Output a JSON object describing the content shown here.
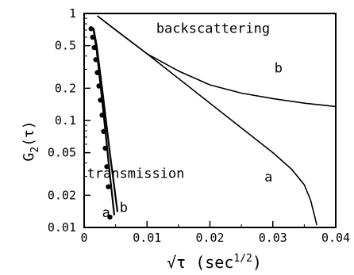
{
  "chart_data": {
    "type": "line",
    "xlabel": "√τ  (sec",
    "xlabel_sup": "1/2",
    "xlabel_close": ")",
    "ylabel": "G",
    "ylabel_sub": "2",
    "ylabel_arg": "(τ)",
    "xlim": [
      0,
      0.04
    ],
    "ylim": [
      0.01,
      1
    ],
    "yscale": "log",
    "grid": false,
    "x_ticks": [
      0,
      0.01,
      0.02,
      0.03,
      0.04
    ],
    "x_tick_labels": [
      "0",
      "0.01",
      "0.02",
      "0.03",
      "0.04"
    ],
    "y_ticks": [
      1,
      0.5,
      0.2,
      0.1,
      0.05,
      0.02,
      0.01
    ],
    "y_tick_labels": [
      "1",
      "0.5",
      "0.2",
      "0.1",
      "0.05",
      "0.02",
      "0.01"
    ],
    "annotations": [
      {
        "text": "backscattering",
        "x": 0.0205,
        "y": 0.66
      },
      {
        "text": "b",
        "x": 0.0309,
        "y": 0.28
      },
      {
        "text": "a",
        "x": 0.0293,
        "y": 0.027
      },
      {
        "text": "transmission",
        "x": 0.0082,
        "y": 0.029
      },
      {
        "text": "a",
        "x": 0.0035,
        "y": 0.0125
      },
      {
        "text": "b",
        "x": 0.0063,
        "y": 0.014
      }
    ],
    "series": [
      {
        "style": "line",
        "x": [
          0.0021,
          0.005,
          0.01,
          0.015,
          0.02,
          0.025,
          0.03,
          0.035,
          0.04
        ],
        "y": [
          0.95,
          0.7,
          0.42,
          0.29,
          0.215,
          0.18,
          0.16,
          0.145,
          0.135
        ]
      },
      {
        "style": "line",
        "x": [
          0.0021,
          0.01,
          0.02,
          0.03,
          0.033,
          0.035,
          0.036,
          0.037
        ],
        "y": [
          0.95,
          0.42,
          0.145,
          0.05,
          0.035,
          0.025,
          0.018,
          0.0105
        ]
      },
      {
        "style": "line",
        "x": [
          0.001,
          0.0015,
          0.002,
          0.003,
          0.004,
          0.0048
        ],
        "y": [
          0.75,
          0.7,
          0.45,
          0.13,
          0.035,
          0.013
        ]
      },
      {
        "style": "line",
        "x": [
          0.001,
          0.0015,
          0.002,
          0.003,
          0.004,
          0.0053
        ],
        "y": [
          0.75,
          0.72,
          0.5,
          0.17,
          0.055,
          0.014
        ]
      },
      {
        "style": "points",
        "x": [
          0.0011,
          0.00135,
          0.0016,
          0.00185,
          0.0021,
          0.00235,
          0.0026,
          0.00285,
          0.0031,
          0.00335,
          0.0036,
          0.00385,
          0.0041
        ],
        "y": [
          0.72,
          0.6,
          0.48,
          0.37,
          0.28,
          0.21,
          0.155,
          0.112,
          0.079,
          0.055,
          0.037,
          0.024,
          0.0125
        ]
      }
    ]
  }
}
